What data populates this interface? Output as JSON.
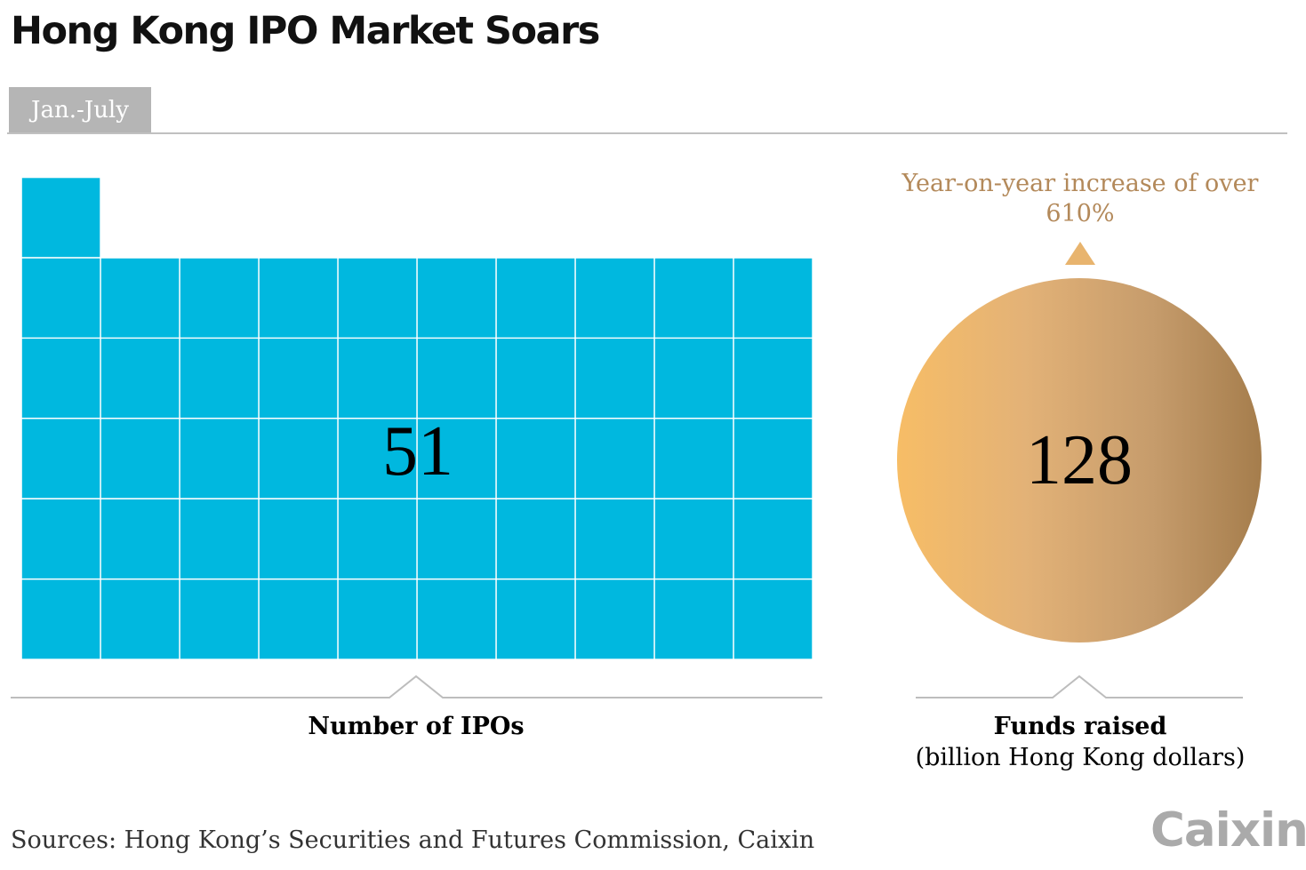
{
  "title": "Hong Kong IPO Market Soars",
  "period": "Jan.-July",
  "logo": "Caixin",
  "sources": "Sources: Hong Kong’s Securities and Futures Commission, Caixin",
  "colors": {
    "ipo_squares": "#00b8df",
    "funds_circle_light": "#f7bd66",
    "funds_circle_dark": "#a57d4c",
    "annotation": "#b3895a"
  },
  "chart_data": [
    {
      "type": "waffle",
      "metric": "Number of IPOs",
      "value": 51,
      "value_label": "51",
      "xlabel": "Number of IPOs",
      "grid": {
        "columns": 10,
        "full_rows": 5,
        "extra_squares": 1
      }
    },
    {
      "type": "bubble",
      "metric": "Funds raised",
      "value": 128,
      "value_label": "128",
      "xlabel": "Funds raised",
      "unit": "(billion Hong Kong dollars)",
      "annotation": {
        "line1": "Year-on-year increase of over",
        "line2": "610%",
        "icon": "triangle-up-icon",
        "percent_increase": 610
      }
    }
  ]
}
